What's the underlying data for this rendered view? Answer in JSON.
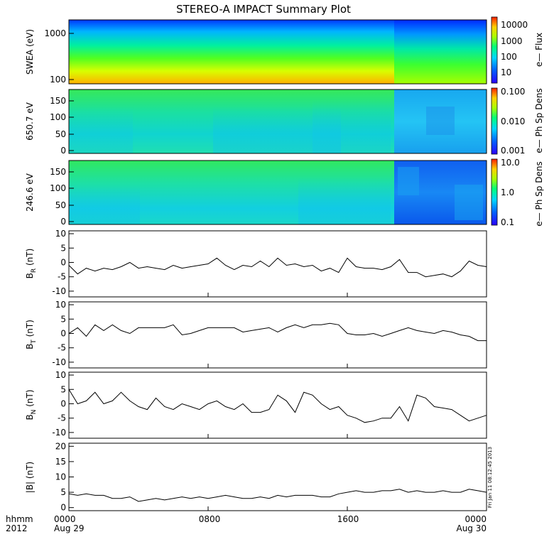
{
  "title": "STEREO-A IMPACT Summary Plot",
  "timestamp": "Fri Jan 11 08:12:45 2013",
  "time_axis": {
    "row1_labels": [
      "hhmm",
      "0000",
      "0800",
      "1600",
      "0000"
    ],
    "row2_labels": [
      "2012",
      "Aug 29",
      "Aug 30"
    ]
  },
  "chart_data": [
    {
      "type": "heatmap",
      "ylabel": "SWEA (eV)",
      "ylim": [
        90,
        2000
      ],
      "yscale": "log",
      "yticks": [
        100,
        1000
      ],
      "ytick_labels": [
        "100",
        "1000"
      ],
      "colorbar": {
        "label": "e— Flux",
        "scale": "log",
        "range": [
          3,
          30000
        ],
        "ticks": [
          10,
          100,
          1000,
          10000
        ],
        "tick_labels": [
          "10",
          "100",
          "1000",
          "10000"
        ]
      },
      "note": "energy-time flux spectrogram; flux drops after ~1800"
    },
    {
      "type": "heatmap",
      "ylabel": "650.7 eV",
      "ylim": [
        -8,
        180
      ],
      "yticks": [
        0,
        50,
        100,
        150
      ],
      "ytick_labels": [
        "0",
        "50",
        "100",
        "150"
      ],
      "colorbar": {
        "label": "e— Ph Sp Dens",
        "scale": "log",
        "range": [
          0.001,
          0.1
        ],
        "ticks": [
          0.001,
          0.01,
          0.1
        ],
        "tick_labels": [
          "0.001",
          "0.010",
          "0.100"
        ]
      }
    },
    {
      "type": "heatmap",
      "ylabel": "246.6 eV",
      "ylim": [
        -8,
        180
      ],
      "yticks": [
        0,
        50,
        100,
        150
      ],
      "ytick_labels": [
        "0",
        "50",
        "100",
        "150"
      ],
      "colorbar": {
        "label": "e— Ph Sp Dens",
        "scale": "log",
        "range": [
          0.1,
          10
        ],
        "ticks": [
          0.1,
          1,
          10
        ],
        "tick_labels": [
          "0.1",
          "1.0",
          "10.0"
        ]
      }
    },
    {
      "type": "line",
      "ylabel_main": "B",
      "ylabel_sub": "R",
      "ylabel_unit": " (nT)",
      "ylim": [
        -12,
        11
      ],
      "yticks": [
        -10,
        -5,
        0,
        5,
        10
      ],
      "ytick_labels": [
        "-10",
        "-5",
        "0",
        "5",
        "10"
      ],
      "x_hours": [
        0,
        0.5,
        1,
        1.5,
        2,
        2.5,
        3,
        3.5,
        4,
        4.5,
        5,
        5.5,
        6,
        6.5,
        7,
        7.5,
        8,
        8.5,
        9,
        9.5,
        10,
        10.5,
        11,
        11.5,
        12,
        12.5,
        13,
        13.5,
        14,
        14.5,
        15,
        15.5,
        16,
        16.5,
        17,
        17.5,
        18,
        18.5,
        19,
        19.5,
        20,
        20.5,
        21,
        21.5,
        22,
        22.5,
        23,
        23.5,
        24
      ],
      "values": [
        -1,
        -4,
        -2,
        -3,
        -2,
        -2.5,
        -1.5,
        0,
        -2,
        -1.5,
        -2,
        -2.5,
        -1,
        -2,
        -1.5,
        -1,
        -0.5,
        1.5,
        -1,
        -2.5,
        -1,
        -1.5,
        0.5,
        -1.5,
        1.5,
        -1,
        -0.5,
        -1.5,
        -1,
        -3,
        -2,
        -3.5,
        1.5,
        -1.5,
        -2,
        -2,
        -2.5,
        -1.5,
        1,
        -3.5,
        -3.5,
        -5,
        -4.5,
        -4,
        -5,
        -3,
        0.5,
        -1,
        -1.5
      ]
    },
    {
      "type": "line",
      "ylabel_main": "B",
      "ylabel_sub": "T",
      "ylabel_unit": " (nT)",
      "ylim": [
        -12,
        11
      ],
      "yticks": [
        -10,
        -5,
        0,
        5,
        10
      ],
      "ytick_labels": [
        "-10",
        "-5",
        "0",
        "5",
        "10"
      ],
      "x_hours": [
        0,
        0.5,
        1,
        1.5,
        2,
        2.5,
        3,
        3.5,
        4,
        4.5,
        5,
        5.5,
        6,
        6.5,
        7,
        7.5,
        8,
        8.5,
        9,
        9.5,
        10,
        10.5,
        11,
        11.5,
        12,
        12.5,
        13,
        13.5,
        14,
        14.5,
        15,
        15.5,
        16,
        16.5,
        17,
        17.5,
        18,
        18.5,
        19,
        19.5,
        20,
        20.5,
        21,
        21.5,
        22,
        22.5,
        23,
        23.5,
        24
      ],
      "values": [
        0,
        2,
        -1,
        3,
        1,
        3,
        1,
        0,
        2,
        2,
        2,
        2,
        3,
        -0.5,
        0,
        1,
        2,
        2,
        2,
        2,
        0.5,
        1,
        1.5,
        2,
        0.5,
        2,
        3,
        2,
        3,
        3,
        3.5,
        3,
        0,
        -0.5,
        -0.5,
        0,
        -1,
        0,
        1,
        2,
        1,
        0.5,
        0,
        1,
        0.5,
        -0.5,
        -1,
        -2.5,
        -2.5
      ]
    },
    {
      "type": "line",
      "ylabel_main": "B",
      "ylabel_sub": "N",
      "ylabel_unit": " (nT)",
      "ylim": [
        -12,
        11
      ],
      "yticks": [
        -10,
        -5,
        0,
        5,
        10
      ],
      "ytick_labels": [
        "-10",
        "-5",
        "0",
        "5",
        "10"
      ],
      "x_hours": [
        0,
        0.5,
        1,
        1.5,
        2,
        2.5,
        3,
        3.5,
        4,
        4.5,
        5,
        5.5,
        6,
        6.5,
        7,
        7.5,
        8,
        8.5,
        9,
        9.5,
        10,
        10.5,
        11,
        11.5,
        12,
        12.5,
        13,
        13.5,
        14,
        14.5,
        15,
        15.5,
        16,
        16.5,
        17,
        17.5,
        18,
        18.5,
        19,
        19.5,
        20,
        20.5,
        21,
        21.5,
        22,
        22.5,
        23,
        23.5,
        24
      ],
      "values": [
        5,
        0,
        1,
        4,
        0,
        1,
        4,
        1,
        -1,
        -2,
        2,
        -1,
        -2,
        0,
        -1,
        -2,
        0,
        1,
        -1,
        -2,
        0,
        -3,
        -3,
        -2,
        3,
        1,
        -3,
        4,
        3,
        0,
        -2,
        -1,
        -4,
        -5,
        -6.5,
        -6,
        -5,
        -5,
        -1,
        -6,
        3,
        2,
        -1,
        -1.5,
        -2,
        -4,
        -6,
        -5,
        -4
      ]
    },
    {
      "type": "line",
      "ylabel_main": "|B|",
      "ylabel_sub": "",
      "ylabel_unit": " (nT)",
      "ylim": [
        -1,
        21
      ],
      "yticks": [
        0,
        5,
        10,
        15,
        20
      ],
      "ytick_labels": [
        "0",
        "5",
        "10",
        "15",
        "20"
      ],
      "x_hours": [
        0,
        0.5,
        1,
        1.5,
        2,
        2.5,
        3,
        3.5,
        4,
        4.5,
        5,
        5.5,
        6,
        6.5,
        7,
        7.5,
        8,
        8.5,
        9,
        9.5,
        10,
        10.5,
        11,
        11.5,
        12,
        12.5,
        13,
        13.5,
        14,
        14.5,
        15,
        15.5,
        16,
        16.5,
        17,
        17.5,
        18,
        18.5,
        19,
        19.5,
        20,
        20.5,
        21,
        21.5,
        22,
        22.5,
        23,
        23.5,
        24
      ],
      "values": [
        4.5,
        4,
        4.5,
        4,
        4,
        3,
        3,
        3.5,
        2,
        2.5,
        3,
        2.5,
        3,
        3.5,
        3,
        3.5,
        3,
        3.5,
        4,
        3.5,
        3,
        3,
        3.5,
        3,
        4,
        3.5,
        4,
        4,
        4,
        3.5,
        3.5,
        4.5,
        5,
        5.5,
        5,
        5,
        5.5,
        5.5,
        6,
        5,
        5.5,
        5,
        5,
        5.5,
        5,
        5,
        6,
        5.5,
        5
      ]
    }
  ]
}
